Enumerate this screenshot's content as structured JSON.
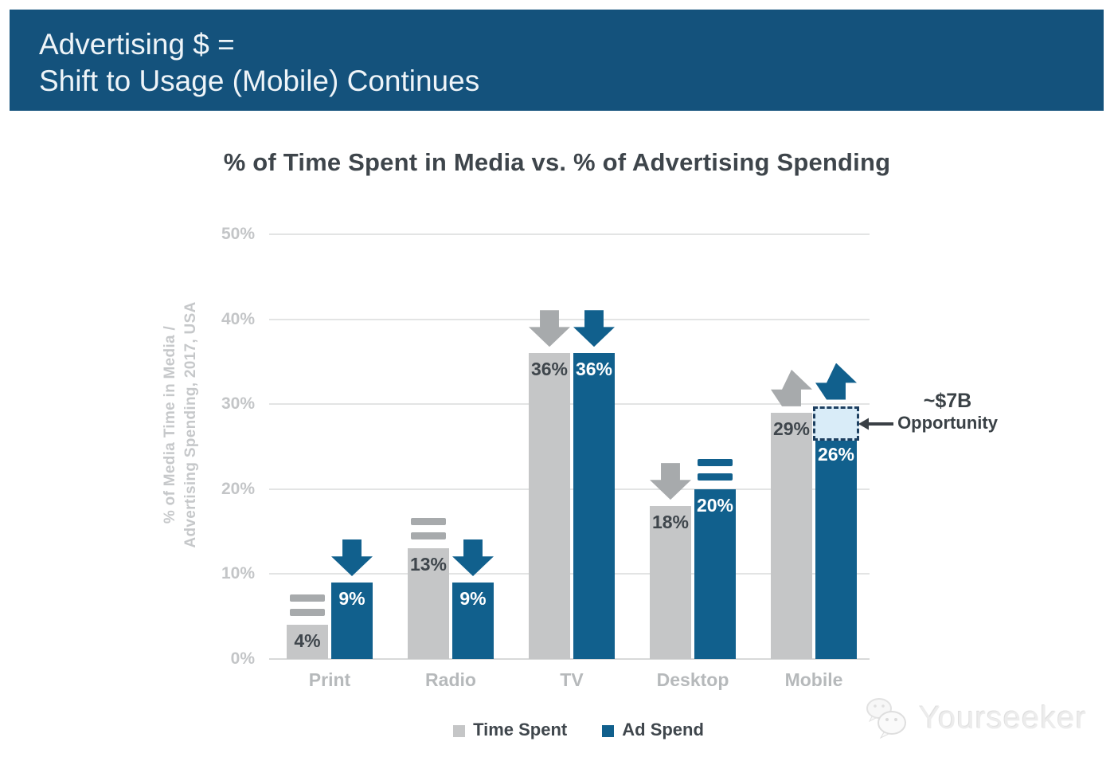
{
  "header": {
    "line1": "Advertising $ =",
    "line2": "Shift to Usage (Mobile) Continues",
    "bg_color": "#14527c"
  },
  "chart_data": {
    "type": "bar",
    "title": "% of Time Spent in Media vs. % of Advertising Spending",
    "ylabel": [
      "% of Media Time in Media /",
      "Advertising Spending, 2017, USA"
    ],
    "categories": [
      "Print",
      "Radio",
      "TV",
      "Desktop",
      "Mobile"
    ],
    "series": [
      {
        "name": "Time Spent",
        "color": "#c5c6c7",
        "trend_color": "#a7aaac",
        "values": [
          4,
          13,
          36,
          18,
          29
        ],
        "trends": [
          "flat",
          "flat",
          "down",
          "down",
          "up"
        ]
      },
      {
        "name": "Ad Spend",
        "color": "#11608d",
        "trend_color": "#11608d",
        "values": [
          9,
          9,
          36,
          20,
          26
        ],
        "trends": [
          "down",
          "down",
          "down",
          "flat",
          "up"
        ]
      }
    ],
    "value_suffix": "%",
    "yticks": [
      "0%",
      "10%",
      "20%",
      "30%",
      "40%",
      "50%"
    ],
    "ylim": [
      0,
      50
    ],
    "grid": true,
    "legend_position": "bottom",
    "annotation": {
      "label_line1": "~$7B",
      "label_line2": "Opportunity",
      "attached_to": "Mobile Ad Spend",
      "box_top_value": 29.5,
      "box_bottom_value": 26,
      "box_fill": "#d9ecf8",
      "box_border": "#1d3f60"
    }
  },
  "watermark": {
    "text": "Yourseeker"
  }
}
